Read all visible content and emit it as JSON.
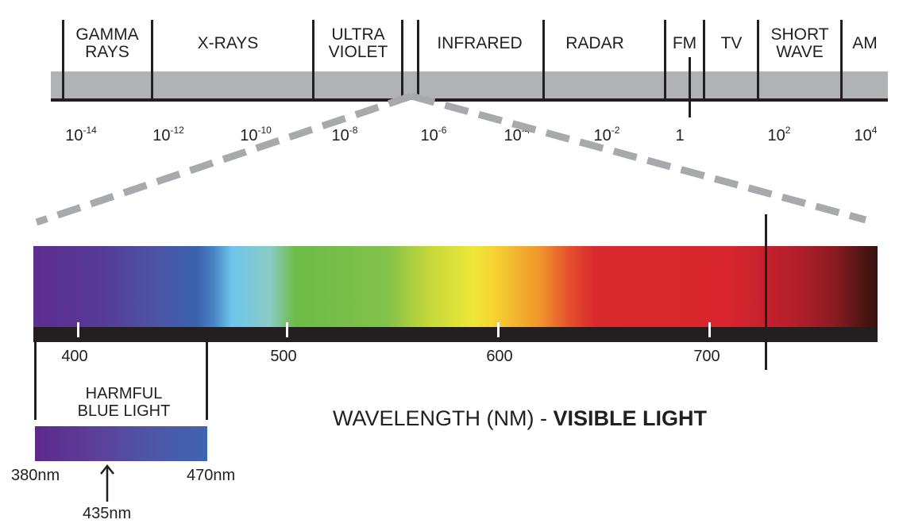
{
  "bands": [
    {
      "lines": [
        "GAMMA",
        "RAYS"
      ]
    },
    {
      "lines": [
        "X-RAYS"
      ]
    },
    {
      "lines": [
        "ULTRA",
        "VIOLET"
      ]
    },
    {
      "lines": [
        "INFRARED"
      ]
    },
    {
      "lines": [
        "RADAR"
      ]
    },
    {
      "lines": [
        "FM"
      ]
    },
    {
      "lines": [
        "TV"
      ]
    },
    {
      "lines": [
        "SHORT",
        "WAVE"
      ]
    },
    {
      "lines": [
        "AM"
      ]
    }
  ],
  "scale": [
    {
      "base": "10",
      "exp": "-14"
    },
    {
      "base": "10",
      "exp": "-12"
    },
    {
      "base": "10",
      "exp": "-10"
    },
    {
      "base": "10",
      "exp": "-8"
    },
    {
      "base": "10",
      "exp": "-6"
    },
    {
      "base": "10",
      "exp": "-4"
    },
    {
      "base": "10",
      "exp": "-2"
    },
    {
      "base": "1",
      "exp": ""
    },
    {
      "base": "10",
      "exp": "2"
    },
    {
      "base": "10",
      "exp": "4"
    }
  ],
  "visible": {
    "ticks": [
      "400",
      "500",
      "600",
      "700"
    ],
    "title_normal": "WAVELENGTH (NM) - ",
    "title_bold": "VISIBLE LIGHT"
  },
  "blue_light": {
    "label_line1": "HARMFUL",
    "label_line2": "BLUE LIGHT",
    "min": "380nm",
    "max": "470nm",
    "peak": "435nm"
  },
  "colors": {
    "band_gray": "#b1b2b4",
    "ink": "#231f20",
    "dash_gray": "#a7a9ac"
  }
}
